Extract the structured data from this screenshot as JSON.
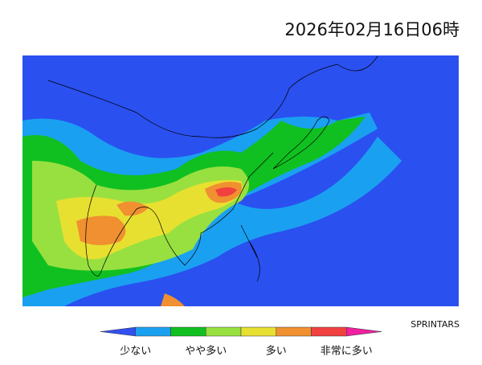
{
  "header": {
    "title": "2026年02月16日06時"
  },
  "credit": "SPRINTARS",
  "legend": {
    "colors": [
      "#3050f0",
      "#1aa0f0",
      "#10c020",
      "#98e040",
      "#e8e030",
      "#f09030",
      "#f04040",
      "#f020a0"
    ],
    "labels": [
      "少ない",
      "やや多い",
      "多い",
      "非常に多い"
    ]
  }
}
